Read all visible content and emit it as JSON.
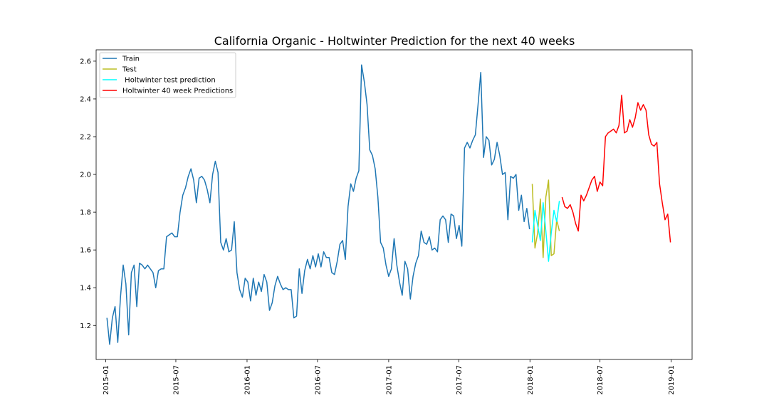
{
  "chart_data": {
    "type": "line",
    "title": "California Organic - Holtwinter Prediction for the next 40 weeks",
    "xlabel": "",
    "ylabel": "",
    "xlim": [
      "2014-12-07",
      "2019-02-24"
    ],
    "ylim": [
      1.02,
      2.66
    ],
    "yticks": [
      "1.2",
      "1.4",
      "1.6",
      "1.8",
      "2.0",
      "2.2",
      "2.4",
      "2.6"
    ],
    "xticks": [
      "2015-01",
      "2015-07",
      "2016-01",
      "2016-07",
      "2017-01",
      "2017-07",
      "2018-01",
      "2018-07",
      "2019-01"
    ],
    "legend_position": "top-left",
    "grid": false,
    "series": [
      {
        "name": "Train",
        "color": "#1f77b4",
        "start": "2015-01-04",
        "step_days": 7,
        "values": [
          1.24,
          1.1,
          1.24,
          1.3,
          1.11,
          1.35,
          1.52,
          1.42,
          1.15,
          1.48,
          1.52,
          1.3,
          1.53,
          1.52,
          1.5,
          1.52,
          1.5,
          1.48,
          1.4,
          1.49,
          1.5,
          1.5,
          1.67,
          1.68,
          1.69,
          1.67,
          1.67,
          1.8,
          1.89,
          1.93,
          1.99,
          2.03,
          1.97,
          1.85,
          1.98,
          1.99,
          1.97,
          1.92,
          1.85,
          2.0,
          2.07,
          2.01,
          1.64,
          1.6,
          1.66,
          1.59,
          1.6,
          1.75,
          1.48,
          1.39,
          1.35,
          1.45,
          1.43,
          1.33,
          1.45,
          1.36,
          1.43,
          1.38,
          1.47,
          1.43,
          1.28,
          1.32,
          1.41,
          1.46,
          1.42,
          1.39,
          1.4,
          1.39,
          1.39,
          1.24,
          1.25,
          1.5,
          1.37,
          1.49,
          1.55,
          1.5,
          1.57,
          1.51,
          1.58,
          1.51,
          1.59,
          1.56,
          1.56,
          1.48,
          1.47,
          1.54,
          1.63,
          1.65,
          1.55,
          1.83,
          1.95,
          1.91,
          1.98,
          2.02,
          2.58,
          2.49,
          2.37,
          2.13,
          2.1,
          2.03,
          1.88,
          1.64,
          1.61,
          1.52,
          1.46,
          1.5,
          1.66,
          1.52,
          1.43,
          1.36,
          1.54,
          1.5,
          1.34,
          1.46,
          1.53,
          1.57,
          1.7,
          1.64,
          1.63,
          1.67,
          1.6,
          1.61,
          1.59,
          1.76,
          1.78,
          1.76,
          1.64,
          1.79,
          1.78,
          1.66,
          1.73,
          1.62,
          2.14,
          2.17,
          2.14,
          2.18,
          2.21,
          2.37,
          2.54,
          2.09,
          2.2,
          2.18,
          2.05,
          2.08,
          2.17,
          2.1,
          2.0,
          2.01,
          1.76,
          1.99,
          1.98,
          2.0,
          1.81,
          1.89,
          1.75,
          1.82,
          1.71
        ]
      },
      {
        "name": "Test",
        "color": "#bcbd22",
        "start": "2018-01-07",
        "step_days": 7,
        "values": [
          1.95,
          1.61,
          1.69,
          1.87,
          1.56,
          1.88,
          1.97,
          1.57,
          1.58,
          1.76,
          1.7
        ]
      },
      {
        "name": " Holtwinter test prediction",
        "color": "#00ffff",
        "start": "2018-01-07",
        "step_days": 7,
        "values": [
          1.64,
          1.81,
          1.73,
          1.65,
          1.85,
          1.7,
          1.54,
          1.69,
          1.81,
          1.75,
          1.86
        ]
      },
      {
        "name": "Holtwinter 40 week Predictions",
        "color": "#ff0000",
        "start": "2018-03-25",
        "step_days": 7,
        "values": [
          1.88,
          1.83,
          1.82,
          1.84,
          1.8,
          1.74,
          1.7,
          1.89,
          1.86,
          1.89,
          1.93,
          1.97,
          1.99,
          1.91,
          1.96,
          1.94,
          2.2,
          2.22,
          2.23,
          2.24,
          2.22,
          2.26,
          2.42,
          2.22,
          2.23,
          2.29,
          2.25,
          2.3,
          2.38,
          2.34,
          2.37,
          2.34,
          2.21,
          2.16,
          2.15,
          2.17,
          1.95,
          1.85,
          1.76,
          1.79,
          1.64
        ]
      }
    ]
  }
}
